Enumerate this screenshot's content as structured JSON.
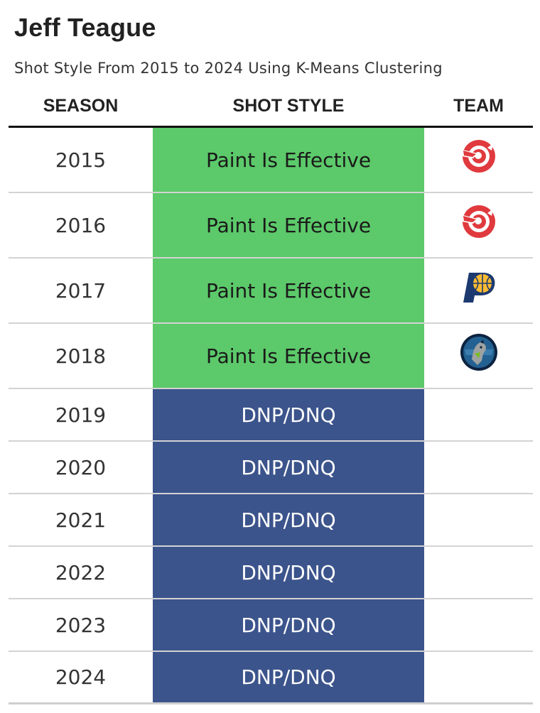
{
  "title": "Jeff Teague",
  "subtitle": "Shot Style From 2015 to 2024 Using K-Means Clustering",
  "columns": {
    "season": "SEASON",
    "shot_style": "SHOT STYLE",
    "team": "TEAM"
  },
  "colors": {
    "Paint Is Effective": {
      "bg": "#5cc96a",
      "fg": "#1a1a1a"
    },
    "DNP/DNQ": {
      "bg": "#3c548c",
      "fg": "#ffffff"
    }
  },
  "chart_data": {
    "type": "table",
    "title": "Jeff Teague",
    "subtitle": "Shot Style From 2015 to 2024 Using K-Means Clustering",
    "columns": [
      "SEASON",
      "SHOT STYLE",
      "TEAM"
    ],
    "rows": [
      {
        "season": "2015",
        "shot_style": "Paint Is Effective",
        "team_logo": "atlanta-hawks-logo-icon"
      },
      {
        "season": "2016",
        "shot_style": "Paint Is Effective",
        "team_logo": "atlanta-hawks-logo-icon"
      },
      {
        "season": "2017",
        "shot_style": "Paint Is Effective",
        "team_logo": "indiana-pacers-logo-icon"
      },
      {
        "season": "2018",
        "shot_style": "Paint Is Effective",
        "team_logo": "minnesota-timberwolves-logo-icon"
      },
      {
        "season": "2019",
        "shot_style": "DNP/DNQ",
        "team_logo": ""
      },
      {
        "season": "2020",
        "shot_style": "DNP/DNQ",
        "team_logo": ""
      },
      {
        "season": "2021",
        "shot_style": "DNP/DNQ",
        "team_logo": ""
      },
      {
        "season": "2022",
        "shot_style": "DNP/DNQ",
        "team_logo": ""
      },
      {
        "season": "2023",
        "shot_style": "DNP/DNQ",
        "team_logo": ""
      },
      {
        "season": "2024",
        "shot_style": "DNP/DNQ",
        "team_logo": ""
      }
    ]
  }
}
